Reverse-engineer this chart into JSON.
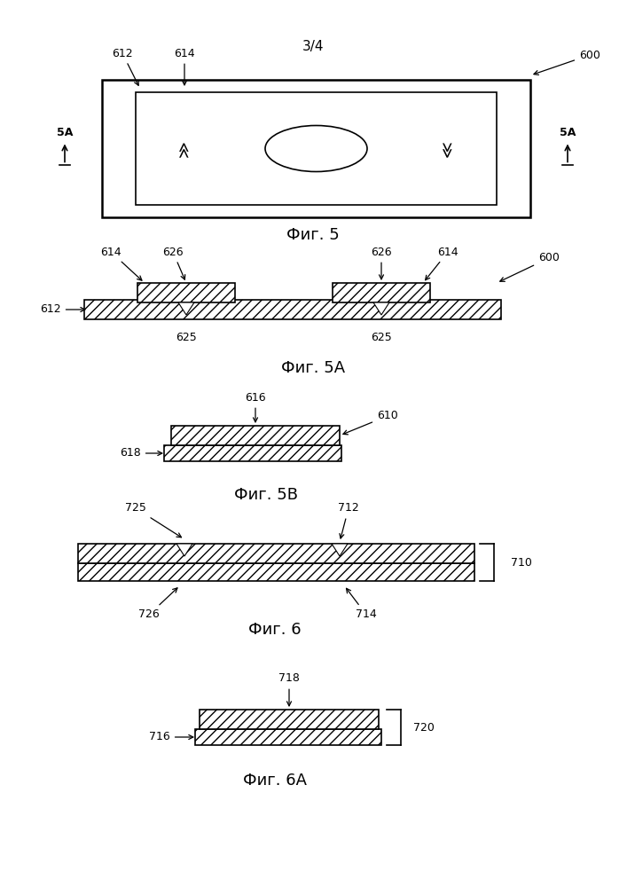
{
  "page_label": "3/4",
  "bg_color": "#ffffff",
  "line_color": "#000000",
  "fig5_caption": "Фиг. 5",
  "fig5A_caption": "Фиг. 5A",
  "fig5B_caption": "Фиг. 5B",
  "fig6_caption": "Фиг. 6",
  "fig6A_caption": "Фиг. 6A"
}
